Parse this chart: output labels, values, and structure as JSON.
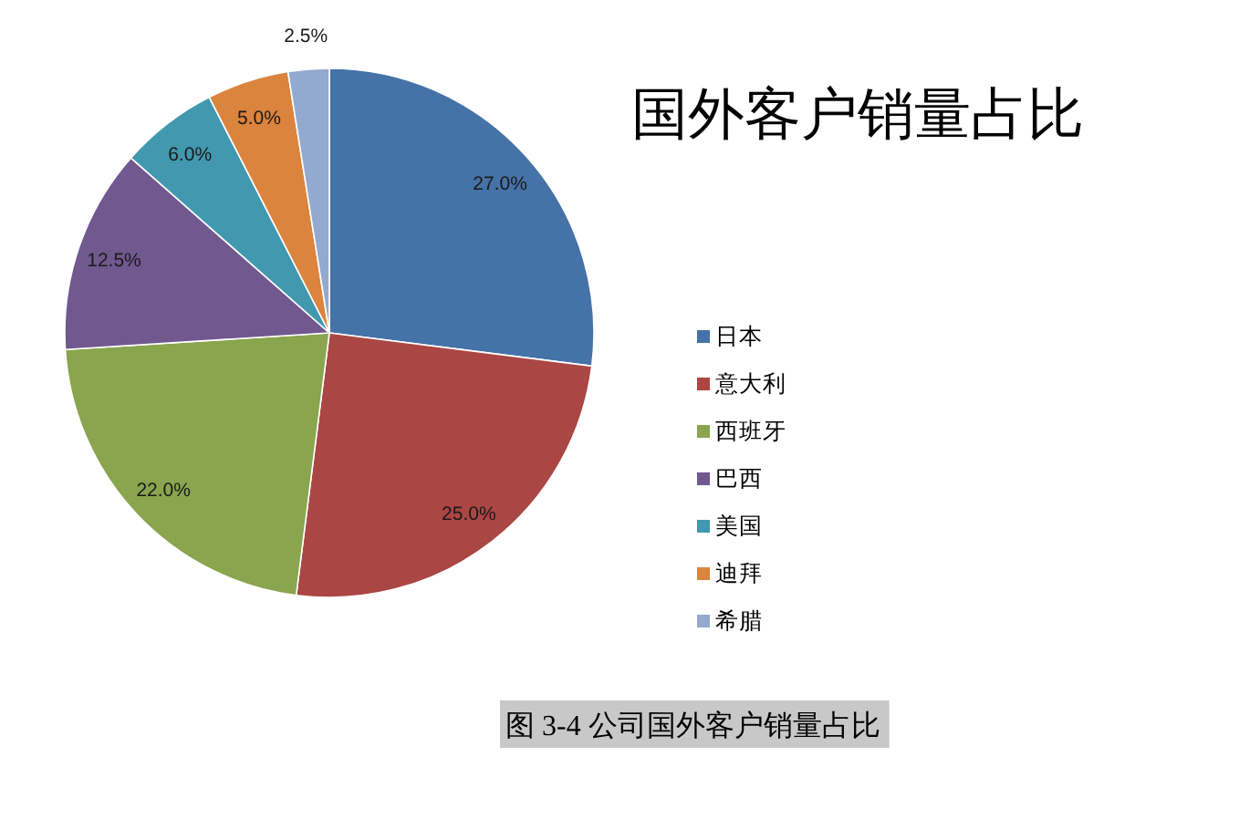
{
  "chart_data": {
    "type": "pie",
    "title": "国外客户销量占比",
    "categories": [
      "日本",
      "意大利",
      "西班牙",
      "巴西",
      "美国",
      "迪拜",
      "希腊"
    ],
    "values": [
      27.0,
      25.0,
      22.0,
      12.5,
      6.0,
      5.0,
      2.5
    ],
    "colors": [
      "#4572a7",
      "#aa4643",
      "#89a54e",
      "#71588f",
      "#4198af",
      "#db843d",
      "#93a9cf"
    ],
    "value_labels": [
      "27.0%",
      "25.0%",
      "22.0%",
      "12.5%",
      "6.0%",
      "5.0%",
      "2.5%"
    ],
    "legend": "right",
    "annotations": [
      "图 3-4 公司国外客户销量占比"
    ]
  }
}
